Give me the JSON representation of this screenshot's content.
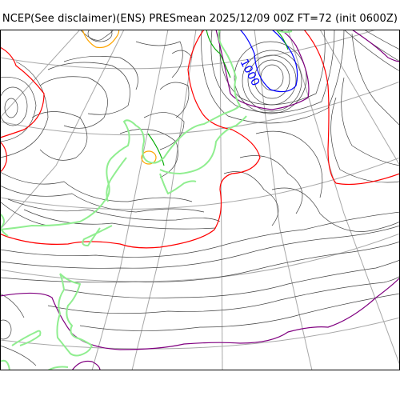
{
  "title": "NCEP(See disclaimer)(ENS) PRESmean 2025/12/09 00Z FT=72 (init 0600Z)",
  "map": {
    "contour_label": "1000",
    "colors": {
      "background": "#ffffff",
      "frame": "#000000",
      "graticule": "#a8a8a8",
      "isobar": "#333333",
      "coastline": "#90ee90",
      "contour_red": "#ff0000",
      "contour_purple": "#800080",
      "contour_blue": "#0000ff",
      "contour_green": "#00aa00",
      "contour_orange": "#ffa500"
    }
  }
}
